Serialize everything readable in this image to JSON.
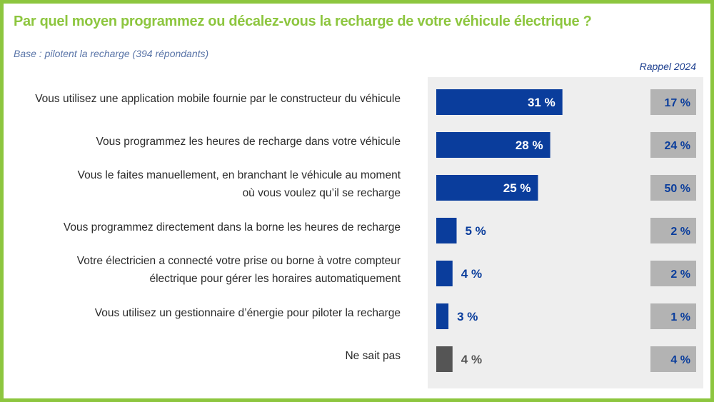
{
  "title": "Par quel moyen programmez ou décalez-vous la recharge de votre véhicule électrique ?",
  "subtitle": "Base : pilotent la recharge (394 répondants)",
  "recall_header": "Rappel 2024",
  "colors": {
    "frame": "#8dc63f",
    "title": "#8dc63f",
    "bar_primary": "#0a3d9c",
    "bar_unknown": "#555555",
    "recall_box": "#b3b3b3",
    "panel": "#eeeeee"
  },
  "chart_data": {
    "type": "bar",
    "orientation": "horizontal",
    "categories": [
      [
        "Vous utilisez une application mobile fournie par le constructeur du véhicule"
      ],
      [
        "Vous programmez les heures de recharge dans votre véhicule"
      ],
      [
        "Vous le faites manuellement, en branchant le véhicule au moment",
        "où vous voulez qu’il se recharge"
      ],
      [
        "Vous programmez directement dans la borne les heures de recharge"
      ],
      [
        "Votre électricien a connecté votre prise ou borne à votre compteur",
        "électrique pour gérer les horaires automatiquement"
      ],
      [
        "Vous utilisez un gestionnaire d’énergie pour piloter la recharge"
      ],
      [
        "Ne sait pas"
      ]
    ],
    "series": [
      {
        "values": [
          31,
          28,
          25,
          5,
          4,
          3,
          4
        ],
        "labels": [
          "31 %",
          "28 %",
          "25 %",
          "5 %",
          "4 %",
          "3 %",
          "4 %"
        ]
      },
      {
        "name": "Rappel 2024",
        "values": [
          17,
          24,
          50,
          2,
          2,
          1,
          4
        ],
        "labels": [
          "17 %",
          "24 %",
          "50 %",
          "2 %",
          "2 %",
          "1 %",
          "4 %"
        ]
      }
    ],
    "unit": "%",
    "xlim": [
      0,
      100
    ],
    "grid": false,
    "legend": "none"
  }
}
